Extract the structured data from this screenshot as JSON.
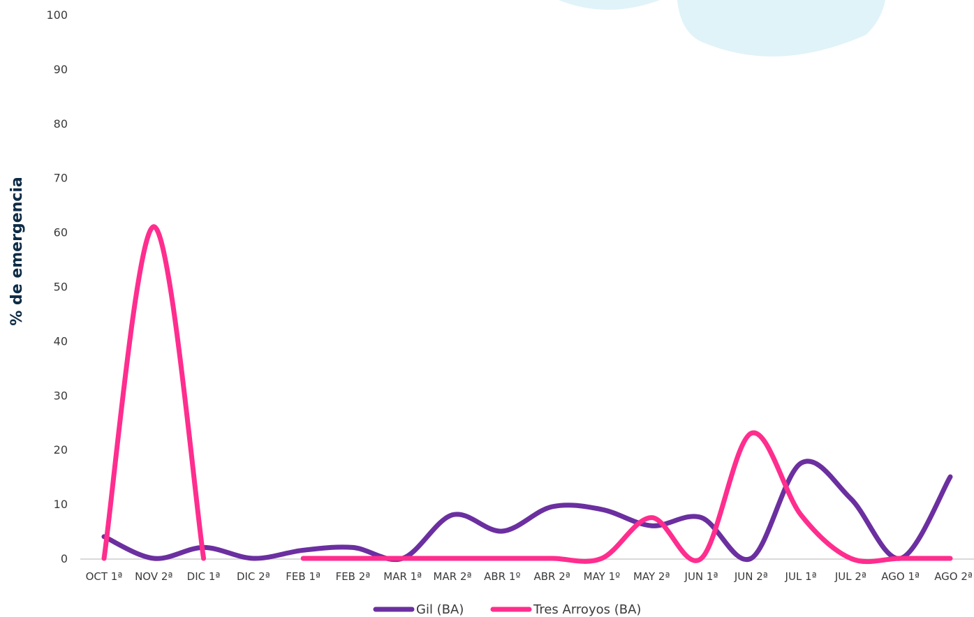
{
  "chart_data": {
    "type": "line",
    "ylabel": "% de emergencia",
    "xlabel": "",
    "ylim": [
      0,
      100
    ],
    "yticks": [
      "0",
      "10",
      "20",
      "30",
      "40",
      "50",
      "60",
      "70",
      "80",
      "90",
      "100"
    ],
    "categories": [
      "OCT 1ª",
      "NOV 2ª",
      "DIC 1ª",
      "DIC 2ª",
      "FEB 1ª",
      "FEB 2ª",
      "MAR 1ª",
      "MAR 2ª",
      "ABR 1º",
      "ABR  2ª",
      "MAY 1º",
      "MAY 2ª",
      "JUN 1ª",
      "JUN 2ª",
      "JUL 1ª",
      "JUL 2ª",
      "AGO 1ª",
      "AGO 2ª"
    ],
    "series": [
      {
        "name": "Gil (BA)",
        "color": "#6b2fa0",
        "values": [
          4,
          0,
          2,
          0,
          1.5,
          2,
          0,
          8,
          5,
          9.5,
          9,
          6,
          7.5,
          0,
          17.5,
          11,
          0,
          15
        ]
      },
      {
        "name": "Tres Arroyos (BA)",
        "color": "#ff2d8e",
        "values": [
          0,
          61,
          0,
          null,
          0,
          0,
          0,
          0,
          0,
          0,
          0,
          7.5,
          0,
          23,
          8,
          0,
          0,
          0
        ]
      }
    ],
    "legend_position": "bottom",
    "grid": false
  },
  "colors": {
    "decor_bubble": "#e0f3f8",
    "axis_line": "#d9d9d9",
    "title": "#0d2b45"
  }
}
